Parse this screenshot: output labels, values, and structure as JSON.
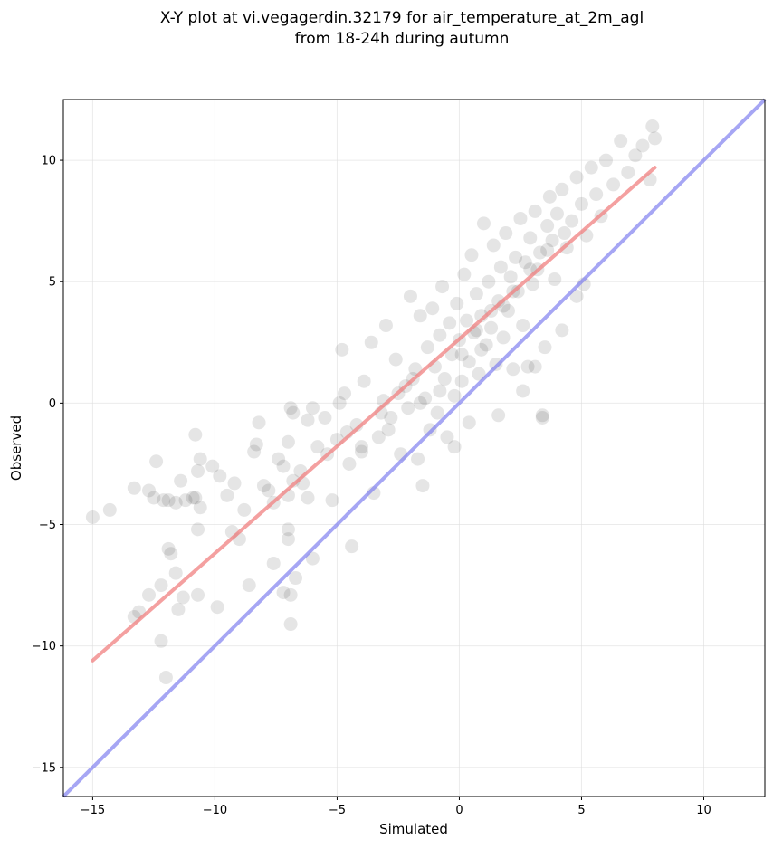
{
  "chart_data": {
    "type": "scatter",
    "title_line1": "X-Y plot at vi.vegagerdin.32179 for air_temperature_at_2m_agl",
    "title_line2": "from 18-24h during autumn",
    "xlabel": "Simulated",
    "ylabel": "Observed",
    "xlim": [
      -16.2,
      12.5
    ],
    "ylim": [
      -16.2,
      12.5
    ],
    "xticks": [
      -15,
      -10,
      -5,
      0,
      5,
      10
    ],
    "yticks": [
      -15,
      -10,
      -5,
      0,
      5,
      10
    ],
    "xtick_labels": [
      "−15",
      "−10",
      "−5",
      "0",
      "5",
      "10"
    ],
    "ytick_labels": [
      "−15",
      "−10",
      "−5",
      "0",
      "5",
      "10"
    ],
    "grid": true,
    "colors": {
      "points": "#000000",
      "regression_line": "#f08080",
      "identity_line": "#8080f0",
      "grid": "#dddddd"
    },
    "regression_line": {
      "x": [
        -15,
        8
      ],
      "y": [
        -10.6,
        9.7
      ]
    },
    "identity_line": {
      "x": [
        -16.2,
        12.5
      ],
      "y": [
        -16.2,
        12.5
      ]
    },
    "points": [
      [
        -15.0,
        -4.7
      ],
      [
        -14.3,
        -4.4
      ],
      [
        -13.3,
        -3.5
      ],
      [
        -12.7,
        -3.6
      ],
      [
        -12.5,
        -3.9
      ],
      [
        -12.4,
        -2.4
      ],
      [
        -12.1,
        -4.0
      ],
      [
        -11.9,
        -4.0
      ],
      [
        -11.6,
        -4.1
      ],
      [
        -11.4,
        -3.2
      ],
      [
        -11.2,
        -4.0
      ],
      [
        -10.9,
        -3.9
      ],
      [
        -10.8,
        -3.9
      ],
      [
        -10.7,
        -2.8
      ],
      [
        -10.6,
        -2.3
      ],
      [
        -10.6,
        -4.3
      ],
      [
        -10.8,
        -1.3
      ],
      [
        -10.7,
        -5.2
      ],
      [
        -10.1,
        -2.6
      ],
      [
        -9.8,
        -3.0
      ],
      [
        -9.5,
        -3.8
      ],
      [
        -9.2,
        -3.3
      ],
      [
        -9.3,
        -5.3
      ],
      [
        -9.0,
        -5.6
      ],
      [
        -8.8,
        -4.4
      ],
      [
        -8.4,
        -2.0
      ],
      [
        -8.3,
        -1.7
      ],
      [
        -8.2,
        -0.8
      ],
      [
        -8.0,
        -3.4
      ],
      [
        -7.8,
        -3.6
      ],
      [
        -7.6,
        -4.1
      ],
      [
        -7.4,
        -2.3
      ],
      [
        -7.2,
        -2.6
      ],
      [
        -7.0,
        -1.6
      ],
      [
        -6.9,
        -0.2
      ],
      [
        -6.8,
        -0.4
      ],
      [
        -6.8,
        -3.2
      ],
      [
        -7.0,
        -3.8
      ],
      [
        -7.0,
        -5.2
      ],
      [
        -7.0,
        -5.6
      ],
      [
        -6.5,
        -2.8
      ],
      [
        -6.2,
        -0.7
      ],
      [
        -6.0,
        -0.2
      ],
      [
        -6.4,
        -3.3
      ],
      [
        -6.2,
        -3.9
      ],
      [
        -5.8,
        -1.8
      ],
      [
        -5.5,
        -0.6
      ],
      [
        -5.4,
        -2.1
      ],
      [
        -5.2,
        -4.0
      ],
      [
        -5.0,
        -1.5
      ],
      [
        -4.9,
        0.0
      ],
      [
        -4.8,
        2.2
      ],
      [
        -4.7,
        0.4
      ],
      [
        -4.6,
        -1.2
      ],
      [
        -4.4,
        -5.9
      ],
      [
        -4.2,
        -0.9
      ],
      [
        -4.0,
        -2.0
      ],
      [
        -3.9,
        0.9
      ],
      [
        -3.6,
        2.5
      ],
      [
        -3.5,
        -3.7
      ],
      [
        -3.3,
        -1.4
      ],
      [
        -3.1,
        0.1
      ],
      [
        -3.0,
        3.2
      ],
      [
        -2.8,
        -0.6
      ],
      [
        -2.6,
        1.8
      ],
      [
        -2.4,
        -2.1
      ],
      [
        -2.2,
        0.7
      ],
      [
        -2.0,
        4.4
      ],
      [
        -1.8,
        1.4
      ],
      [
        -1.7,
        -2.3
      ],
      [
        -1.6,
        3.6
      ],
      [
        -1.5,
        -3.4
      ],
      [
        -1.4,
        0.2
      ],
      [
        -1.3,
        2.3
      ],
      [
        -1.2,
        -1.1
      ],
      [
        -1.1,
        3.9
      ],
      [
        -1.0,
        1.5
      ],
      [
        -0.9,
        -0.4
      ],
      [
        -0.8,
        2.8
      ],
      [
        -0.7,
        4.8
      ],
      [
        -0.6,
        1.0
      ],
      [
        -0.5,
        -1.4
      ],
      [
        -0.4,
        3.3
      ],
      [
        -0.3,
        2.0
      ],
      [
        -0.2,
        0.3
      ],
      [
        -0.1,
        4.1
      ],
      [
        0.0,
        2.6
      ],
      [
        0.1,
        0.9
      ],
      [
        0.2,
        5.3
      ],
      [
        0.3,
        3.4
      ],
      [
        0.4,
        1.7
      ],
      [
        0.5,
        6.1
      ],
      [
        0.6,
        2.9
      ],
      [
        0.7,
        4.5
      ],
      [
        0.8,
        1.2
      ],
      [
        0.9,
        3.6
      ],
      [
        1.0,
        7.4
      ],
      [
        1.1,
        2.4
      ],
      [
        1.2,
        5.0
      ],
      [
        1.3,
        3.1
      ],
      [
        1.4,
        6.5
      ],
      [
        1.5,
        1.6
      ],
      [
        1.6,
        4.2
      ],
      [
        1.7,
        5.6
      ],
      [
        1.8,
        2.7
      ],
      [
        1.9,
        7.0
      ],
      [
        2.0,
        3.8
      ],
      [
        2.1,
        5.2
      ],
      [
        2.2,
        1.4
      ],
      [
        2.3,
        6.0
      ],
      [
        2.4,
        4.6
      ],
      [
        2.5,
        7.6
      ],
      [
        2.6,
        3.2
      ],
      [
        2.7,
        5.8
      ],
      [
        2.8,
        1.5
      ],
      [
        2.9,
        6.8
      ],
      [
        3.0,
        4.9
      ],
      [
        3.1,
        7.9
      ],
      [
        3.2,
        5.5
      ],
      [
        3.3,
        6.2
      ],
      [
        3.4,
        -0.5
      ],
      [
        3.5,
        2.3
      ],
      [
        3.6,
        7.3
      ],
      [
        3.7,
        8.5
      ],
      [
        3.8,
        6.7
      ],
      [
        3.9,
        5.1
      ],
      [
        4.0,
        7.8
      ],
      [
        4.2,
        8.8
      ],
      [
        4.4,
        6.4
      ],
      [
        4.6,
        7.5
      ],
      [
        4.8,
        9.3
      ],
      [
        5.0,
        8.2
      ],
      [
        5.2,
        6.9
      ],
      [
        5.4,
        9.7
      ],
      [
        5.6,
        8.6
      ],
      [
        5.8,
        7.7
      ],
      [
        6.0,
        10.0
      ],
      [
        6.3,
        9.0
      ],
      [
        6.6,
        10.8
      ],
      [
        6.9,
        9.5
      ],
      [
        7.2,
        10.2
      ],
      [
        7.5,
        10.6
      ],
      [
        7.8,
        9.2
      ],
      [
        8.0,
        10.9
      ],
      [
        7.9,
        11.4
      ],
      [
        3.4,
        -0.6
      ],
      [
        -12.7,
        -7.9
      ],
      [
        -13.1,
        -8.6
      ],
      [
        -12.2,
        -7.5
      ],
      [
        -11.8,
        -6.2
      ],
      [
        -11.9,
        -6.0
      ],
      [
        -11.6,
        -7.0
      ],
      [
        -11.3,
        -8.0
      ],
      [
        -12.2,
        -9.8
      ],
      [
        -12.0,
        -11.3
      ],
      [
        -10.7,
        -7.9
      ],
      [
        -9.9,
        -8.4
      ],
      [
        -8.6,
        -7.5
      ],
      [
        -7.6,
        -6.6
      ],
      [
        -7.2,
        -7.8
      ],
      [
        -6.9,
        -7.9
      ],
      [
        -6.9,
        -9.1
      ],
      [
        -6.7,
        -7.2
      ],
      [
        -6.0,
        -6.4
      ],
      [
        -13.3,
        -8.8
      ],
      [
        -11.5,
        -8.5
      ],
      [
        -2.5,
        0.4
      ],
      [
        -2.1,
        -0.2
      ],
      [
        -1.9,
        1.0
      ],
      [
        -0.2,
        -1.8
      ],
      [
        0.4,
        -0.8
      ],
      [
        1.6,
        -0.5
      ],
      [
        2.6,
        0.5
      ],
      [
        3.1,
        1.5
      ],
      [
        4.2,
        3.0
      ],
      [
        4.8,
        4.4
      ],
      [
        5.1,
        4.9
      ],
      [
        -0.8,
        0.5
      ],
      [
        0.1,
        2.0
      ],
      [
        0.7,
        3.0
      ],
      [
        1.3,
        3.8
      ],
      [
        -3.2,
        -0.4
      ],
      [
        -4.0,
        -1.8
      ],
      [
        -4.5,
        -2.5
      ],
      [
        -2.9,
        -1.1
      ],
      [
        -1.6,
        0.0
      ],
      [
        0.9,
        2.2
      ],
      [
        1.8,
        4.0
      ],
      [
        2.2,
        4.6
      ],
      [
        2.9,
        5.5
      ],
      [
        3.6,
        6.3
      ],
      [
        4.3,
        7.0
      ]
    ]
  }
}
